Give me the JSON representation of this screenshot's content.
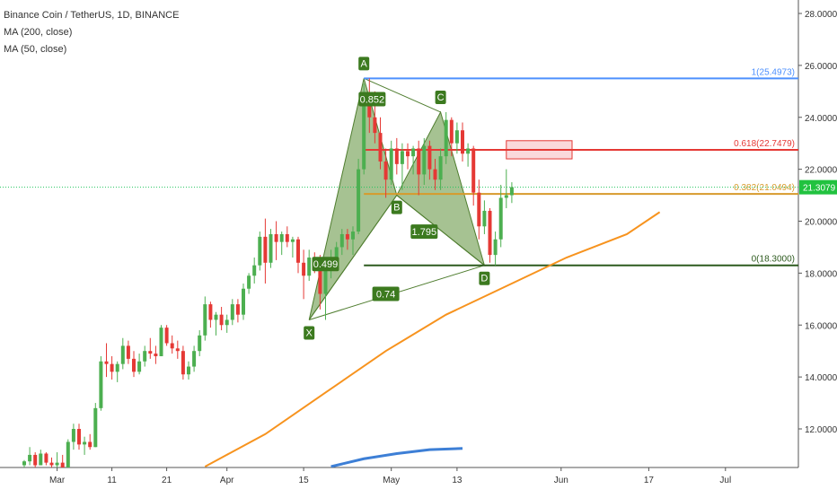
{
  "header": {
    "symbol_line": "Binance Coin / TetherUS, 1D, BINANCE",
    "indicators": [
      "MA (200, close)",
      "MA (50, close)"
    ]
  },
  "colors": {
    "up": "#4caf50",
    "down": "#e53935",
    "ma50": "#f7931e",
    "ma200": "#3d7fd6",
    "pattern_fill": "#6b9a4a",
    "pattern_stroke": "#4f7d2f",
    "label_bg": "#3c7a1f",
    "fib_1": "#4d90fe",
    "fib_0618": "#e53935",
    "fib_0382": "#d79a2b",
    "fib_0": "#2e5b1f",
    "price_line": "#22c55e",
    "price_badge": "#21c23f"
  },
  "chart_data": {
    "type": "candlestick",
    "title": "Binance Coin / TetherUS, 1D, BINANCE",
    "ylim": [
      10.5,
      28.7
    ],
    "y_ticks": [
      12,
      14,
      16,
      18,
      20,
      22,
      24,
      26,
      28
    ],
    "y_tick_labels": [
      "12.0000",
      "14.0000",
      "16.0000",
      "18.0000",
      "20.0000",
      "22.0000",
      "24.0000",
      "26.0000",
      "28.0000"
    ],
    "x_ticks": [
      {
        "label": "Mar",
        "date": "2019-03-01"
      },
      {
        "label": "11",
        "date": "2019-03-11"
      },
      {
        "label": "21",
        "date": "2019-03-21"
      },
      {
        "label": "Apr",
        "date": "2019-04-01"
      },
      {
        "label": "15",
        "date": "2019-04-15"
      },
      {
        "label": "May",
        "date": "2019-05-01"
      },
      {
        "label": "13",
        "date": "2019-05-13"
      },
      {
        "label": "Jun",
        "date": "2019-06-01"
      },
      {
        "label": "17",
        "date": "2019-06-17"
      },
      {
        "label": "Jul",
        "date": "2019-07-01"
      }
    ],
    "start_date": "2019-02-23",
    "candles": [
      [
        10.6,
        10.8,
        10.5,
        10.75
      ],
      [
        10.75,
        11.3,
        10.6,
        11.0
      ],
      [
        11.0,
        11.1,
        10.5,
        10.6
      ],
      [
        10.6,
        11.2,
        10.6,
        11.05
      ],
      [
        11.05,
        11.1,
        10.6,
        10.7
      ],
      [
        10.7,
        10.9,
        10.4,
        10.6
      ],
      [
        10.6,
        11.1,
        10.5,
        10.7
      ],
      [
        10.7,
        11.0,
        10.3,
        10.5
      ],
      [
        10.5,
        11.6,
        10.5,
        11.5
      ],
      [
        11.5,
        12.2,
        11.2,
        12.0
      ],
      [
        12.0,
        12.2,
        11.2,
        11.4
      ],
      [
        11.4,
        11.7,
        11.0,
        11.5
      ],
      [
        11.5,
        11.8,
        11.2,
        11.3
      ],
      [
        11.3,
        13.0,
        11.3,
        12.8
      ],
      [
        12.8,
        14.8,
        12.7,
        14.6
      ],
      [
        14.6,
        15.3,
        14.0,
        14.5
      ],
      [
        14.5,
        14.8,
        13.9,
        14.2
      ],
      [
        14.2,
        14.6,
        13.8,
        14.5
      ],
      [
        14.5,
        15.5,
        14.3,
        15.2
      ],
      [
        15.2,
        15.4,
        14.5,
        14.7
      ],
      [
        14.7,
        15.0,
        14.0,
        14.2
      ],
      [
        14.2,
        14.9,
        14.1,
        14.6
      ],
      [
        14.6,
        15.2,
        14.4,
        15.0
      ],
      [
        15.0,
        15.5,
        14.7,
        14.9
      ],
      [
        14.9,
        15.2,
        14.5,
        14.8
      ],
      [
        14.8,
        16.0,
        14.8,
        15.9
      ],
      [
        15.9,
        16.0,
        15.2,
        15.3
      ],
      [
        15.3,
        15.6,
        14.9,
        15.1
      ],
      [
        15.1,
        15.4,
        14.7,
        15.0
      ],
      [
        15.0,
        15.2,
        13.9,
        14.1
      ],
      [
        14.1,
        14.6,
        13.9,
        14.4
      ],
      [
        14.4,
        15.2,
        14.2,
        15.0
      ],
      [
        15.0,
        15.8,
        14.8,
        15.6
      ],
      [
        15.6,
        17.1,
        15.4,
        16.8
      ],
      [
        16.8,
        16.9,
        15.9,
        16.2
      ],
      [
        16.2,
        16.5,
        15.6,
        16.4
      ],
      [
        16.4,
        16.7,
        15.8,
        16.0
      ],
      [
        16.0,
        16.4,
        15.7,
        16.2
      ],
      [
        16.2,
        17.0,
        16.0,
        16.8
      ],
      [
        16.8,
        17.0,
        16.1,
        16.4
      ],
      [
        16.4,
        17.6,
        16.2,
        17.4
      ],
      [
        17.4,
        18.0,
        17.2,
        17.9
      ],
      [
        17.9,
        18.6,
        17.6,
        18.3
      ],
      [
        18.3,
        19.6,
        18.1,
        19.4
      ],
      [
        19.4,
        20.1,
        17.6,
        18.4
      ],
      [
        18.4,
        19.7,
        18.2,
        19.5
      ],
      [
        19.5,
        20.0,
        18.5,
        19.2
      ],
      [
        19.2,
        19.6,
        18.7,
        19.5
      ],
      [
        19.5,
        19.8,
        19.0,
        19.2
      ],
      [
        19.2,
        19.4,
        18.6,
        19.3
      ],
      [
        19.3,
        19.4,
        18.0,
        18.4
      ],
      [
        18.4,
        18.9,
        17.0,
        17.9
      ],
      [
        17.9,
        18.9,
        17.7,
        18.6
      ],
      [
        18.6,
        18.8,
        18.0,
        18.5
      ],
      [
        18.5,
        18.7,
        16.6,
        17.2
      ],
      [
        17.2,
        18.4,
        16.2,
        18.1
      ],
      [
        18.1,
        18.9,
        17.8,
        18.6
      ],
      [
        18.6,
        19.2,
        18.4,
        19.0
      ],
      [
        19.0,
        19.7,
        18.7,
        19.5
      ],
      [
        19.5,
        19.7,
        18.9,
        19.3
      ],
      [
        19.3,
        19.8,
        18.7,
        19.6
      ],
      [
        19.6,
        22.4,
        19.5,
        22.0
      ],
      [
        22.0,
        25.3,
        21.8,
        24.6
      ],
      [
        24.6,
        25.5,
        23.4,
        24.0
      ],
      [
        24.0,
        25.0,
        23.0,
        23.4
      ],
      [
        23.4,
        24.0,
        22.0,
        22.3
      ],
      [
        22.3,
        22.8,
        20.9,
        21.6
      ],
      [
        21.6,
        23.1,
        21.4,
        22.8
      ],
      [
        22.8,
        23.2,
        21.8,
        22.2
      ],
      [
        22.2,
        23.0,
        21.2,
        22.7
      ],
      [
        22.7,
        23.0,
        22.0,
        22.5
      ],
      [
        22.5,
        22.9,
        21.8,
        22.8
      ],
      [
        22.8,
        23.1,
        21.0,
        21.8
      ],
      [
        21.8,
        23.2,
        21.4,
        22.9
      ],
      [
        22.9,
        23.1,
        21.6,
        22.0
      ],
      [
        22.0,
        22.4,
        21.2,
        21.6
      ],
      [
        21.6,
        22.8,
        21.2,
        22.5
      ],
      [
        22.5,
        24.2,
        22.2,
        23.9
      ],
      [
        23.9,
        24.0,
        22.5,
        23.0
      ],
      [
        23.0,
        23.8,
        22.6,
        23.5
      ],
      [
        23.5,
        23.8,
        22.3,
        22.6
      ],
      [
        22.6,
        23.0,
        22.1,
        22.8
      ],
      [
        22.8,
        22.9,
        20.6,
        21.1
      ],
      [
        21.1,
        21.6,
        19.3,
        19.8
      ],
      [
        19.8,
        20.8,
        19.5,
        20.4
      ],
      [
        20.4,
        20.5,
        18.4,
        18.7
      ],
      [
        18.7,
        19.6,
        18.3,
        19.3
      ],
      [
        19.3,
        21.4,
        19.0,
        20.9
      ],
      [
        20.9,
        22.0,
        20.5,
        21.0
      ],
      [
        21.0,
        21.5,
        20.7,
        21.31
      ]
    ],
    "ma50": [
      [
        33,
        10.55
      ],
      [
        44,
        11.8
      ],
      [
        55,
        13.4
      ],
      [
        66,
        15.0
      ],
      [
        77,
        16.4
      ],
      [
        88,
        17.5
      ],
      [
        99,
        18.6
      ],
      [
        110,
        19.5
      ],
      [
        116,
        20.35
      ]
    ],
    "ma200": [
      [
        56,
        10.55
      ],
      [
        62,
        10.85
      ],
      [
        68,
        11.05
      ],
      [
        74,
        11.2
      ],
      [
        80,
        11.25
      ]
    ],
    "harmonic": {
      "points": [
        {
          "name": "X",
          "date_index": 52,
          "price": 16.2
        },
        {
          "name": "A",
          "date_index": 62,
          "price": 25.5
        },
        {
          "name": "B",
          "date_index": 68,
          "price": 21.0
        },
        {
          "name": "C",
          "date_index": 76,
          "price": 24.2
        },
        {
          "name": "D",
          "date_index": 84,
          "price": 18.3
        }
      ],
      "ratios": [
        {
          "label": "0.852",
          "date_index": 63.5,
          "price": 24.7
        },
        {
          "label": "0.499",
          "date_index": 55,
          "price": 18.35
        },
        {
          "label": "1.795",
          "date_index": 73,
          "price": 19.6
        },
        {
          "label": "0.74",
          "date_index": 66,
          "price": 17.2
        }
      ]
    },
    "fib_levels": [
      {
        "ratio": "1",
        "price": 25.4973,
        "label": "1(25.4973)",
        "color_key": "fib_1"
      },
      {
        "ratio": "0.618",
        "price": 22.7479,
        "label": "0.618(22.7479)",
        "color_key": "fib_0618"
      },
      {
        "ratio": "0.382",
        "price": 21.0494,
        "label": "0.382(21.0494)",
        "color_key": "fib_0382"
      },
      {
        "ratio": "0",
        "price": 18.3,
        "label": "0(18.3000)",
        "color_key": "fib_0"
      }
    ],
    "target_zone": {
      "price_top": 23.1,
      "price_bottom": 22.4,
      "date_start": 88,
      "date_end": 100
    },
    "last_price": {
      "value": 21.3079,
      "label": "21.3079"
    }
  }
}
